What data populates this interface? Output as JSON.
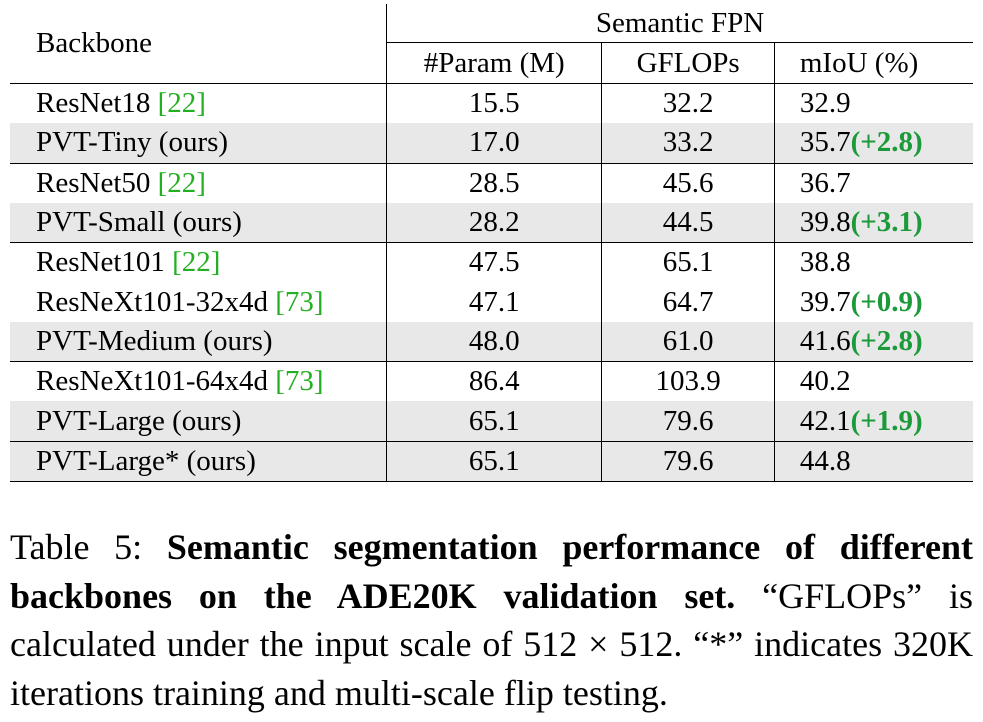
{
  "table": {
    "header": {
      "backbone": "Backbone",
      "group": "Semantic FPN",
      "param": "#Param (M)",
      "gflops": "GFLOPs",
      "miou": "mIoU (%)"
    },
    "rows": [
      {
        "name": "ResNet18 ",
        "cite": "[22]",
        "param": "15.5",
        "gflops": "32.2",
        "miou": "32.9",
        "gain": ""
      },
      {
        "name": "PVT-Tiny (ours)",
        "cite": "",
        "param": "17.0",
        "gflops": "33.2",
        "miou": "35.7",
        "gain": "(+2.8)"
      },
      {
        "name": "ResNet50 ",
        "cite": "[22]",
        "param": "28.5",
        "gflops": "45.6",
        "miou": "36.7",
        "gain": ""
      },
      {
        "name": "PVT-Small (ours)",
        "cite": "",
        "param": "28.2",
        "gflops": "44.5",
        "miou": "39.8",
        "gain": "(+3.1)"
      },
      {
        "name": "ResNet101 ",
        "cite": "[22]",
        "param": "47.5",
        "gflops": "65.1",
        "miou": "38.8",
        "gain": ""
      },
      {
        "name": "ResNeXt101-32x4d ",
        "cite": "[73]",
        "param": "47.1",
        "gflops": "64.7",
        "miou": "39.7",
        "gain": "(+0.9)"
      },
      {
        "name": "PVT-Medium (ours)",
        "cite": "",
        "param": "48.0",
        "gflops": "61.0",
        "miou": "41.6",
        "gain": "(+2.8)"
      },
      {
        "name": "ResNeXt101-64x4d ",
        "cite": "[73]",
        "param": "86.4",
        "gflops": "103.9",
        "miou": "40.2",
        "gain": ""
      },
      {
        "name": "PVT-Large (ours)",
        "cite": "",
        "param": "65.1",
        "gflops": "79.6",
        "miou": "42.1",
        "gain": "(+1.9)"
      },
      {
        "name": "PVT-Large* (ours)",
        "cite": "",
        "param": "65.1",
        "gflops": "79.6",
        "miou": "44.8",
        "gain": ""
      }
    ]
  },
  "caption": {
    "label": "Table 5: ",
    "bold": "Semantic segmentation performance of different backbones on the ADE20K validation set.",
    "rest_1": " “GFLOPs” is calculated under the input scale of ",
    "scale": "512 × 512",
    "rest_2": ". “*” indicates 320K iterations training and multi-scale flip testing."
  },
  "colors": {
    "citation": "#22b022",
    "gain": "#1c9a3a",
    "row_shade": "#e8e8e8"
  }
}
